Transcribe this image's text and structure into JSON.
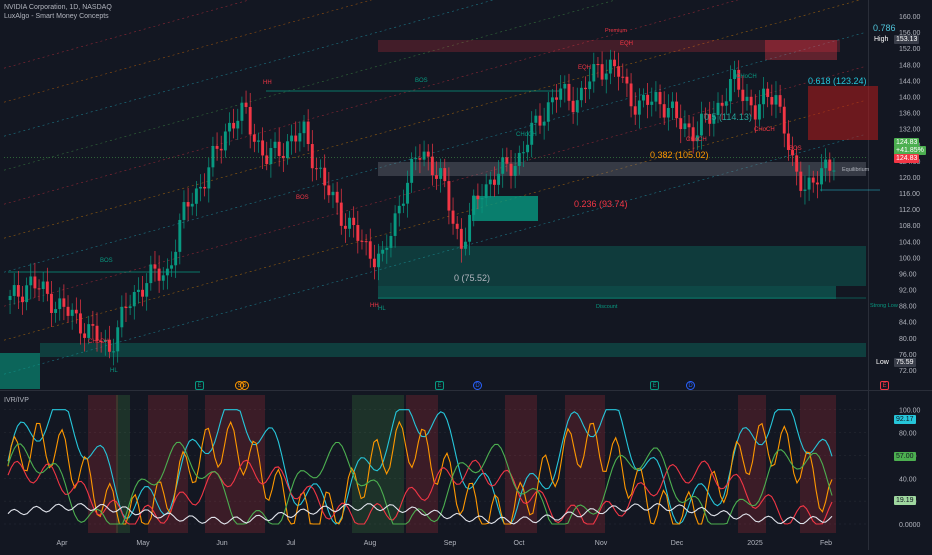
{
  "header": {
    "title": "NVIDIA Corporation, 1D, NASDAQ",
    "indicator": "LuxAlgo - Smart Money Concepts",
    "sub_indicator": "IVR/IVP"
  },
  "price_axis": {
    "ticks": [
      "160.00",
      "156.00",
      "152.00",
      "148.00",
      "144.00",
      "140.00",
      "136.00",
      "132.00",
      "128.00",
      "124.00",
      "120.00",
      "116.00",
      "112.00",
      "108.00",
      "104.00",
      "100.00",
      "96.00",
      "92.00",
      "88.00",
      "84.00",
      "80.00",
      "76.00",
      "72.00"
    ],
    "high_label": "High",
    "high_value": "153.13",
    "low_label": "Low",
    "low_value": "75.59",
    "last_price": "124.83",
    "last_change": "+41.85%",
    "prev_price": "124.83"
  },
  "sub_axis": {
    "ticks": [
      "100.00",
      "80.00",
      "60.00",
      "40.00",
      "20.00",
      "0.0000"
    ],
    "val1": "92.17",
    "val2": "57.00",
    "val3": "19.19"
  },
  "time_axis": [
    "Apr",
    "May",
    "Jun",
    "Jul",
    "Aug",
    "Sep",
    "Oct",
    "Nov",
    "Dec",
    "2025",
    "Feb"
  ],
  "fib_labels": {
    "f786": "0.786",
    "f618": "0.618 (123.24)",
    "f5": "0.5 (114.13)",
    "f382": "0.382 (105.02)",
    "f236": "0.236 (93.74)",
    "f0": "0 (75.52)"
  },
  "zone_labels": {
    "premium": "Premium",
    "equilibrium": "Equilibrium",
    "discount": "Discount",
    "strong_low": "Strong Low"
  },
  "structure_labels": [
    {
      "text": "HH",
      "color": "#f23645"
    },
    {
      "text": "BOS",
      "color": "#089981"
    },
    {
      "text": "BOS",
      "color": "#f23645"
    },
    {
      "text": "CHoCH",
      "color": "#f23645"
    },
    {
      "text": "HL",
      "color": "#089981"
    },
    {
      "text": "HH",
      "color": "#f23645"
    },
    {
      "text": "BOS",
      "color": "#089981"
    },
    {
      "text": "HL",
      "color": "#089981"
    },
    {
      "text": "CHoCH",
      "color": "#089981"
    },
    {
      "text": "EQH",
      "color": "#f23645"
    },
    {
      "text": "EQH",
      "color": "#f23645"
    },
    {
      "text": "CHoCH",
      "color": "#f23645"
    },
    {
      "text": "CHoCH",
      "color": "#089981"
    },
    {
      "text": "CHoCH",
      "color": "#f23645"
    },
    {
      "text": "BOS",
      "color": "#f23645"
    },
    {
      "text": "HH",
      "color": "#089981"
    }
  ],
  "events": [
    {
      "text": "E",
      "color": "#089981"
    },
    {
      "text": "S",
      "color": "#ff9800"
    },
    {
      "text": "S",
      "color": "#ff9800"
    },
    {
      "text": "E",
      "color": "#089981"
    },
    {
      "text": "D",
      "color": "#2962ff"
    },
    {
      "text": "E",
      "color": "#089981"
    },
    {
      "text": "D",
      "color": "#2962ff"
    },
    {
      "text": "E",
      "color": "#f23645"
    }
  ],
  "chart_data": {
    "type": "candlestick",
    "title": "NVIDIA Corporation, 1D, NASDAQ",
    "ylim": [
      70,
      162
    ],
    "x": [
      "Apr",
      "May",
      "Jun",
      "Jul",
      "Aug",
      "Sep",
      "Oct",
      "Nov",
      "Dec",
      "2025",
      "Feb"
    ],
    "close_path": [
      {
        "x": "Mar",
        "y": 89
      },
      {
        "x": "Mar",
        "y": 94
      },
      {
        "x": "Apr",
        "y": 90
      },
      {
        "x": "Apr",
        "y": 86
      },
      {
        "x": "Apr",
        "y": 82
      },
      {
        "x": "Apr",
        "y": 77
      },
      {
        "x": "May",
        "y": 88
      },
      {
        "x": "May",
        "y": 95
      },
      {
        "x": "May",
        "y": 96
      },
      {
        "x": "Jun",
        "y": 113
      },
      {
        "x": "Jun",
        "y": 120
      },
      {
        "x": "Jun",
        "y": 132
      },
      {
        "x": "Jun",
        "y": 136
      },
      {
        "x": "Jun",
        "y": 124
      },
      {
        "x": "Jul",
        "y": 128
      },
      {
        "x": "Jul",
        "y": 131
      },
      {
        "x": "Jul",
        "y": 118
      },
      {
        "x": "Jul",
        "y": 110
      },
      {
        "x": "Aug",
        "y": 103
      },
      {
        "x": "Aug",
        "y": 99
      },
      {
        "x": "Aug",
        "y": 116
      },
      {
        "x": "Aug",
        "y": 127
      },
      {
        "x": "Sep",
        "y": 119
      },
      {
        "x": "Sep",
        "y": 103
      },
      {
        "x": "Sep",
        "y": 117
      },
      {
        "x": "Sep",
        "y": 121
      },
      {
        "x": "Oct",
        "y": 125
      },
      {
        "x": "Oct",
        "y": 135
      },
      {
        "x": "Oct",
        "y": 141
      },
      {
        "x": "Nov",
        "y": 139
      },
      {
        "x": "Nov",
        "y": 148
      },
      {
        "x": "Nov",
        "y": 146
      },
      {
        "x": "Nov",
        "y": 137
      },
      {
        "x": "Dec",
        "y": 140
      },
      {
        "x": "Dec",
        "y": 134
      },
      {
        "x": "Dec",
        "y": 131
      },
      {
        "x": "Dec",
        "y": 137
      },
      {
        "x": "2025",
        "y": 144
      },
      {
        "x": "2025",
        "y": 136
      },
      {
        "x": "2025",
        "y": 142
      },
      {
        "x": "2025",
        "y": 120
      },
      {
        "x": "Feb",
        "y": 118
      },
      {
        "x": "Feb",
        "y": 124.83
      }
    ],
    "high": 153.13,
    "low": 75.59,
    "last": 124.83,
    "fib_levels": [
      {
        "level": 0,
        "price": 75.52
      },
      {
        "level": 0.236,
        "price": 93.74
      },
      {
        "level": 0.382,
        "price": 105.02
      },
      {
        "level": 0.5,
        "price": 114.13
      },
      {
        "level": 0.618,
        "price": 123.24
      }
    ],
    "sub_panel": {
      "name": "IVR/IVP",
      "ylim": [
        0,
        105
      ],
      "series_last": [
        92.17,
        57.0,
        19.19
      ]
    }
  }
}
